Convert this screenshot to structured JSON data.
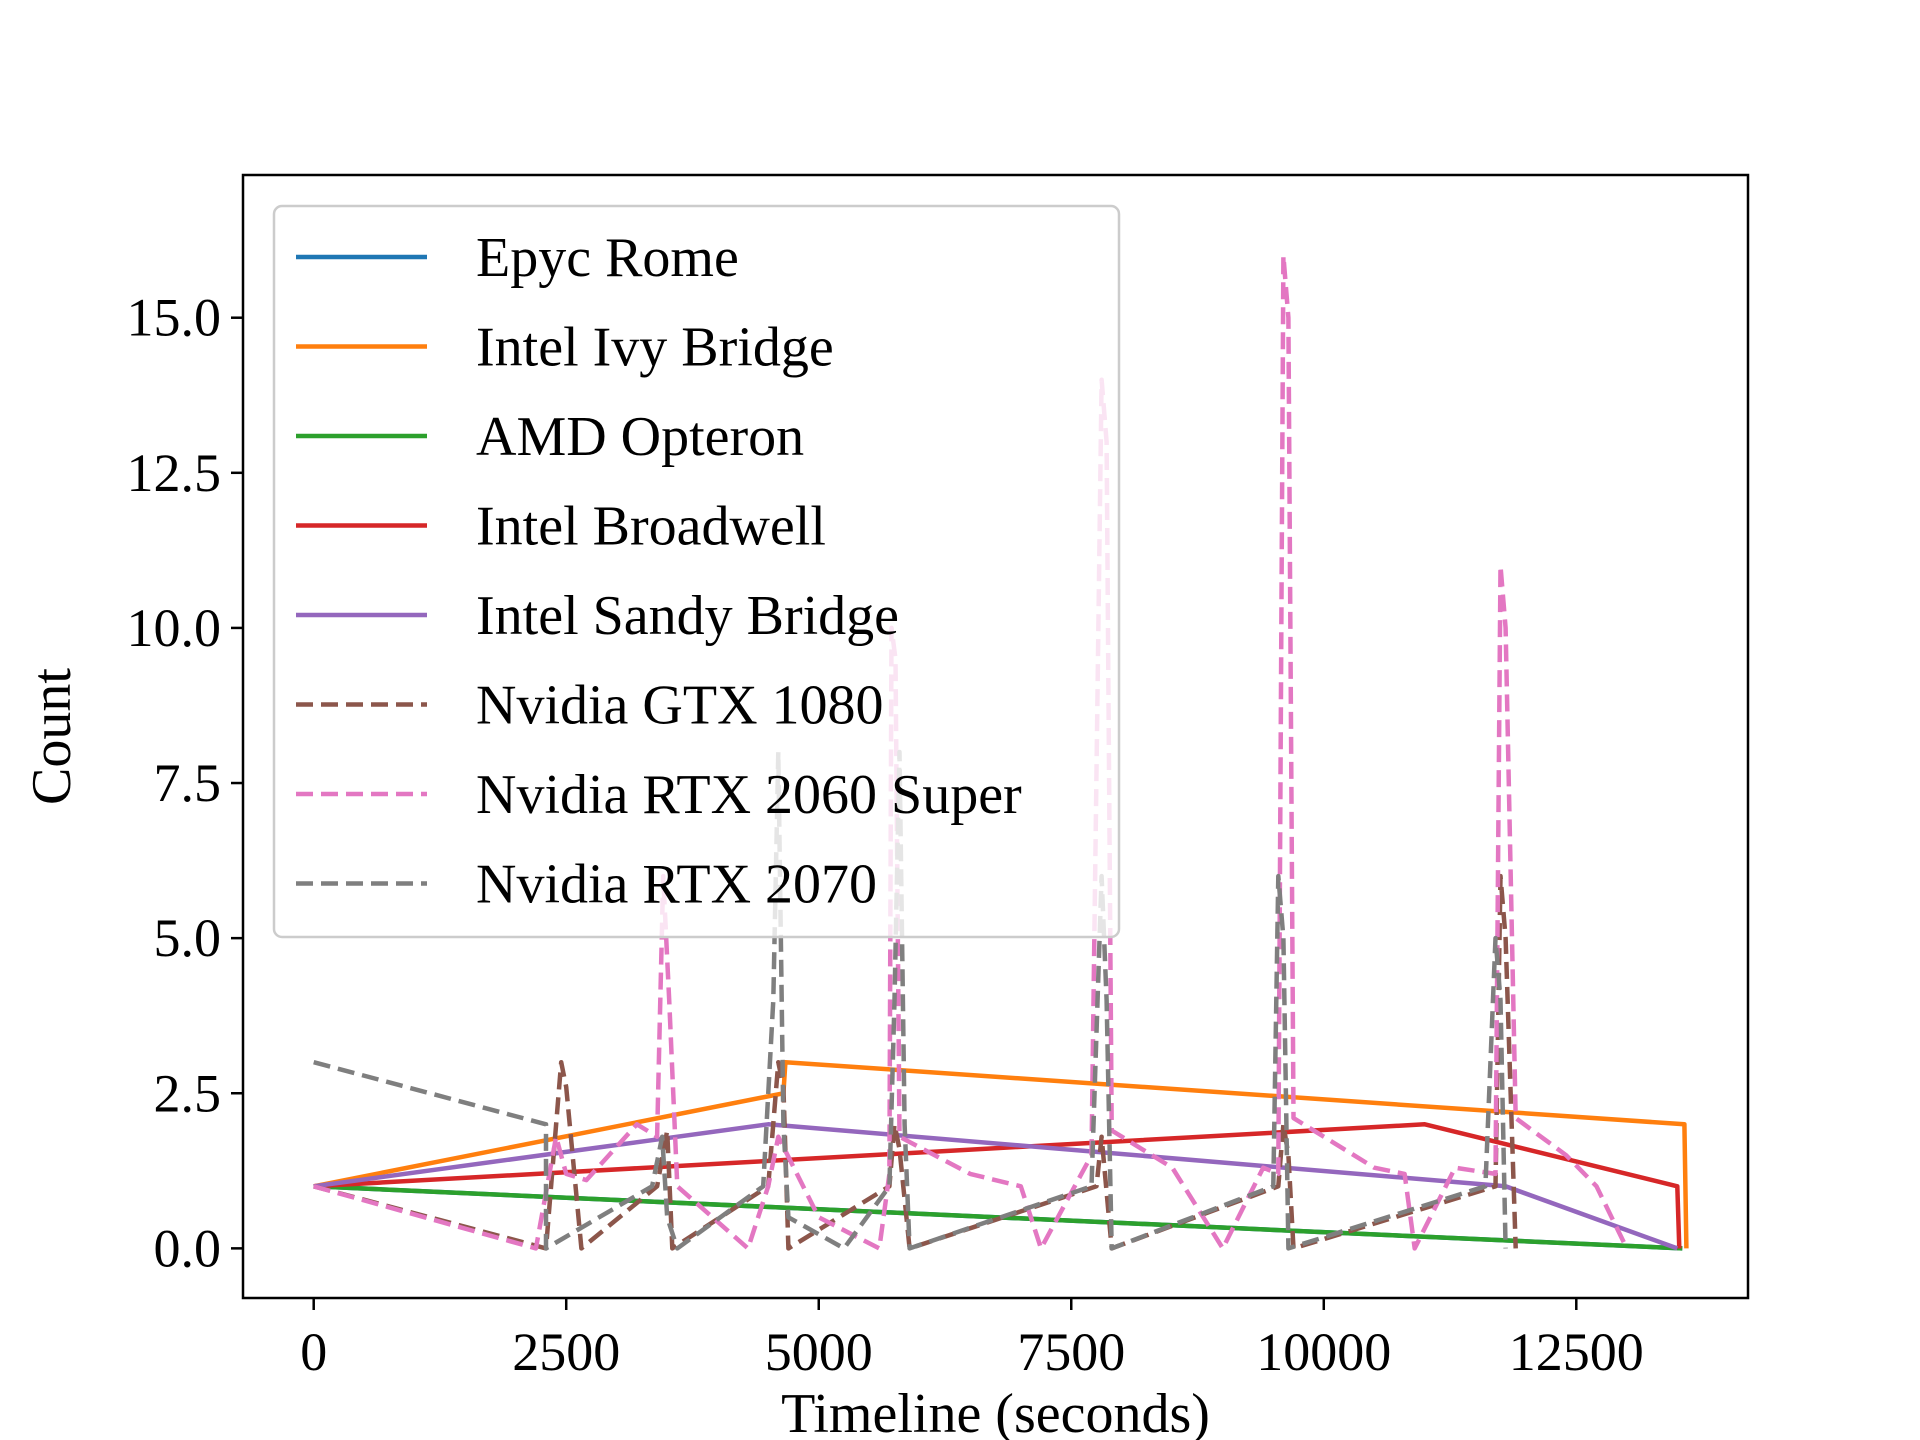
{
  "chart_data": {
    "type": "line",
    "xlabel": "Timeline (seconds)",
    "ylabel": "Count",
    "xlim": [
      -700,
      14200
    ],
    "ylim": [
      -0.8,
      17.3
    ],
    "xticks": [
      0,
      2500,
      5000,
      7500,
      10000,
      12500
    ],
    "xtick_labels": [
      "0",
      "2500",
      "5000",
      "7500",
      "10000",
      "12500"
    ],
    "yticks": [
      0,
      2.5,
      5,
      7.5,
      10,
      12.5,
      15
    ],
    "ytick_labels": [
      "0.0",
      "2.5",
      "5.0",
      "7.5",
      "10.0",
      "12.5",
      "15.0"
    ],
    "grid": false,
    "legend_position": "upper-left",
    "series": [
      {
        "name": "Epyc Rome",
        "color": "#1f77b4",
        "style": "solid",
        "points": [
          [
            0,
            1
          ],
          [
            13550,
            0
          ]
        ]
      },
      {
        "name": "Intel Ivy Bridge",
        "color": "#ff7f0e",
        "style": "solid",
        "points": [
          [
            0,
            1
          ],
          [
            4650,
            2.5
          ],
          [
            4670,
            3
          ],
          [
            13570,
            2
          ],
          [
            13590,
            0
          ]
        ]
      },
      {
        "name": "AMD Opteron",
        "color": "#2ca02c",
        "style": "solid",
        "points": [
          [
            0,
            1
          ],
          [
            13550,
            0
          ]
        ]
      },
      {
        "name": "Intel Broadwell",
        "color": "#d62728",
        "style": "solid",
        "points": [
          [
            0,
            1
          ],
          [
            11000,
            2
          ],
          [
            13500,
            1
          ],
          [
            13520,
            0
          ]
        ]
      },
      {
        "name": "Intel Sandy Bridge",
        "color": "#9467bd",
        "style": "solid",
        "points": [
          [
            0,
            1
          ],
          [
            4500,
            2
          ],
          [
            11800,
            1
          ],
          [
            13500,
            0
          ]
        ]
      },
      {
        "name": "Nvidia GTX 1080",
        "color": "#8c564b",
        "style": "dashed",
        "points": [
          [
            0,
            1
          ],
          [
            2300,
            0
          ],
          [
            2450,
            3
          ],
          [
            2500,
            2.6
          ],
          [
            2650,
            0
          ],
          [
            3400,
            1
          ],
          [
            3500,
            1.9
          ],
          [
            3550,
            0
          ],
          [
            4500,
            1
          ],
          [
            4600,
            3
          ],
          [
            4650,
            2.6
          ],
          [
            4700,
            0
          ],
          [
            5700,
            1
          ],
          [
            5750,
            2
          ],
          [
            5800,
            1.6
          ],
          [
            5900,
            0
          ],
          [
            7750,
            1
          ],
          [
            7800,
            1.8
          ],
          [
            7900,
            0
          ],
          [
            9550,
            1
          ],
          [
            9600,
            2
          ],
          [
            9650,
            1.5
          ],
          [
            9700,
            0
          ],
          [
            11700,
            1
          ],
          [
            11750,
            6
          ],
          [
            11800,
            5
          ],
          [
            11900,
            0
          ]
        ]
      },
      {
        "name": "Nvidia RTX 2060 Super",
        "color": "#e377c2",
        "style": "dashed",
        "points": [
          [
            0,
            1
          ],
          [
            2200,
            0
          ],
          [
            2400,
            1.8
          ],
          [
            2500,
            1.2
          ],
          [
            2700,
            1.1
          ],
          [
            3200,
            2
          ],
          [
            3400,
            1.8
          ],
          [
            3460,
            6
          ],
          [
            3520,
            4
          ],
          [
            3600,
            1
          ],
          [
            4300,
            0
          ],
          [
            4500,
            1
          ],
          [
            4600,
            1.8
          ],
          [
            5000,
            0.5
          ],
          [
            5600,
            0
          ],
          [
            5700,
            1.2
          ],
          [
            5720,
            10
          ],
          [
            5760,
            9.5
          ],
          [
            5800,
            1.8
          ],
          [
            6500,
            1.2
          ],
          [
            7000,
            1
          ],
          [
            7200,
            0
          ],
          [
            7700,
            1.5
          ],
          [
            7800,
            14
          ],
          [
            7850,
            13
          ],
          [
            7900,
            1.9
          ],
          [
            8500,
            1.3
          ],
          [
            9000,
            0
          ],
          [
            9400,
            1.3
          ],
          [
            9550,
            1.2
          ],
          [
            9600,
            16
          ],
          [
            9650,
            15
          ],
          [
            9700,
            2.1
          ],
          [
            10000,
            1.8
          ],
          [
            10500,
            1.3
          ],
          [
            10800,
            1.2
          ],
          [
            10900,
            0
          ],
          [
            11300,
            1.3
          ],
          [
            11700,
            1.2
          ],
          [
            11750,
            11
          ],
          [
            11800,
            10
          ],
          [
            11900,
            2.1
          ],
          [
            12400,
            1.5
          ],
          [
            12700,
            1
          ],
          [
            13000,
            0
          ]
        ]
      },
      {
        "name": "Nvidia RTX 2070",
        "color": "#7f7f7f",
        "style": "dashed",
        "points": [
          [
            0,
            3
          ],
          [
            2300,
            2
          ],
          [
            2300,
            0
          ],
          [
            3350,
            1
          ],
          [
            3450,
            1.8
          ],
          [
            3500,
            0.5
          ],
          [
            3600,
            0
          ],
          [
            4450,
            1
          ],
          [
            4550,
            4
          ],
          [
            4600,
            8
          ],
          [
            4650,
            2
          ],
          [
            4700,
            0.5
          ],
          [
            5250,
            0
          ],
          [
            5700,
            1
          ],
          [
            5750,
            4
          ],
          [
            5800,
            8
          ],
          [
            5850,
            2
          ],
          [
            5900,
            0
          ],
          [
            7700,
            1
          ],
          [
            7800,
            6
          ],
          [
            7850,
            4
          ],
          [
            7900,
            0
          ],
          [
            9500,
            1
          ],
          [
            9550,
            6
          ],
          [
            9600,
            5
          ],
          [
            9650,
            0
          ],
          [
            11600,
            1
          ],
          [
            11700,
            5
          ],
          [
            11750,
            4
          ],
          [
            11800,
            0
          ]
        ]
      }
    ]
  }
}
